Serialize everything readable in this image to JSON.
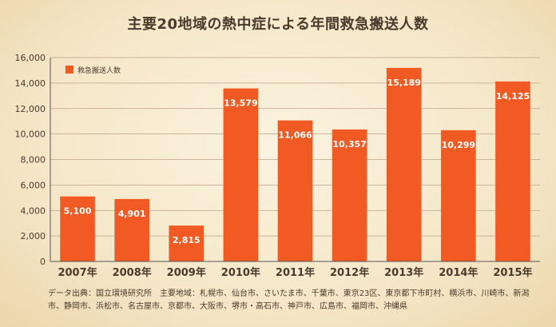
{
  "chart_data": {
    "type": "bar",
    "title": "主要20地域の熱中症による年間救急搬送人数",
    "categories": [
      "2007年",
      "2008年",
      "2009年",
      "2010年",
      "2011年",
      "2012年",
      "2013年",
      "2014年",
      "2015年"
    ],
    "series": [
      {
        "name": "救急搬送人数",
        "values": [
          5100,
          4901,
          2815,
          13579,
          11066,
          10357,
          15189,
          10299,
          14125
        ]
      }
    ],
    "data_labels": [
      "5,100",
      "4,901",
      "2,815",
      "13,579",
      "11,066",
      "10,357",
      "15,189",
      "10,299",
      "14,125"
    ],
    "y_ticks": [
      0,
      2000,
      4000,
      6000,
      8000,
      10000,
      12000,
      14000,
      16000
    ],
    "y_tick_labels": [
      "0",
      "2,000",
      "4,000",
      "6,000",
      "8,000",
      "10,000",
      "12,000",
      "14,000",
      "16,000"
    ],
    "ylim": [
      0,
      16000
    ],
    "grid": true,
    "legend_position": "top-left",
    "colors": {
      "bar": "#f15a22",
      "grid": "#b8a48a",
      "text": "#4a3a2c",
      "label": "#ffffff"
    }
  },
  "source_note": "データ出典：国立環境研究所　主要地域：札幌市、仙台市、さいたま市、千葉市、東京23区、東京都下市町村、横浜市、川崎市、新潟市、静岡市、浜松市、名古屋市、京都市、大阪市、堺市・高石市、神戸市、広島市、福岡市、沖縄県"
}
